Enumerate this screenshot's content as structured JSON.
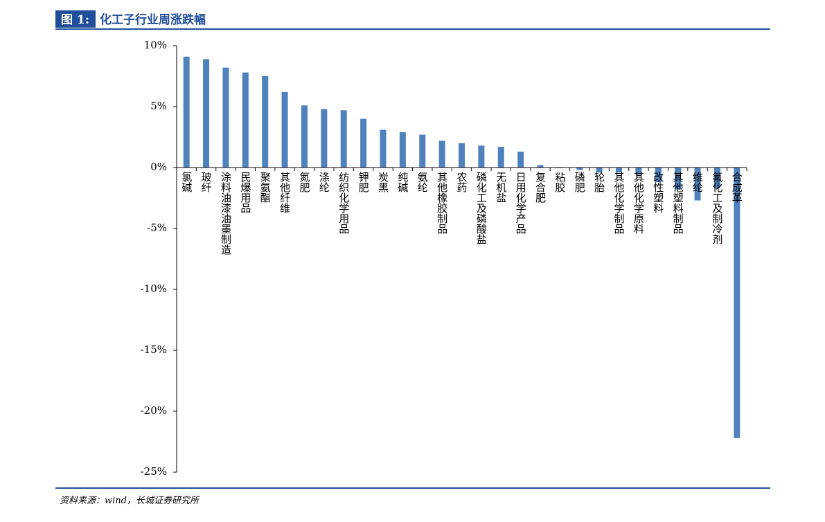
{
  "chart_data": {
    "type": "bar",
    "figure_label": "图 1:",
    "title": "化工子行业周涨跌幅",
    "source": "资料来源：wind，长城证券研究所",
    "categories": [
      "氯碱",
      "玻纤",
      "涂料油漆油墨制造",
      "民爆用品",
      "聚氨酯",
      "其他纤维",
      "氮肥",
      "涤纶",
      "纺织化学用品",
      "钾肥",
      "炭黑",
      "纯碱",
      "氨纶",
      "其他橡胶制品",
      "农药",
      "磷化工及磷酸盐",
      "无机盐",
      "日用化学产品",
      "复合肥",
      "粘胶",
      "磷肥",
      "轮胎",
      "其他化学制品",
      "其他化学原料",
      "改性塑料",
      "其他塑料制品",
      "维纶",
      "氟化工及制冷剂",
      "合成革"
    ],
    "values": [
      9.1,
      8.9,
      8.2,
      7.8,
      7.5,
      6.2,
      5.1,
      4.8,
      4.7,
      4.0,
      3.1,
      2.9,
      2.7,
      2.2,
      2.0,
      1.8,
      1.7,
      1.3,
      0.2,
      -0.05,
      -0.2,
      -0.4,
      -0.4,
      -0.6,
      -1.2,
      -1.8,
      -2.7,
      -1.7,
      -22.2
    ],
    "color": "#4f81bd",
    "ylim": [
      -25,
      10
    ],
    "yticks": [
      {
        "value": 10,
        "label": "10%"
      },
      {
        "value": 5,
        "label": "5%"
      },
      {
        "value": 0,
        "label": "0%"
      },
      {
        "value": -5,
        "label": "-5%"
      },
      {
        "value": -10,
        "label": "-10%"
      },
      {
        "value": -15,
        "label": "-15%"
      },
      {
        "value": -20,
        "label": "-20%"
      },
      {
        "value": -25,
        "label": "-25%"
      }
    ]
  }
}
